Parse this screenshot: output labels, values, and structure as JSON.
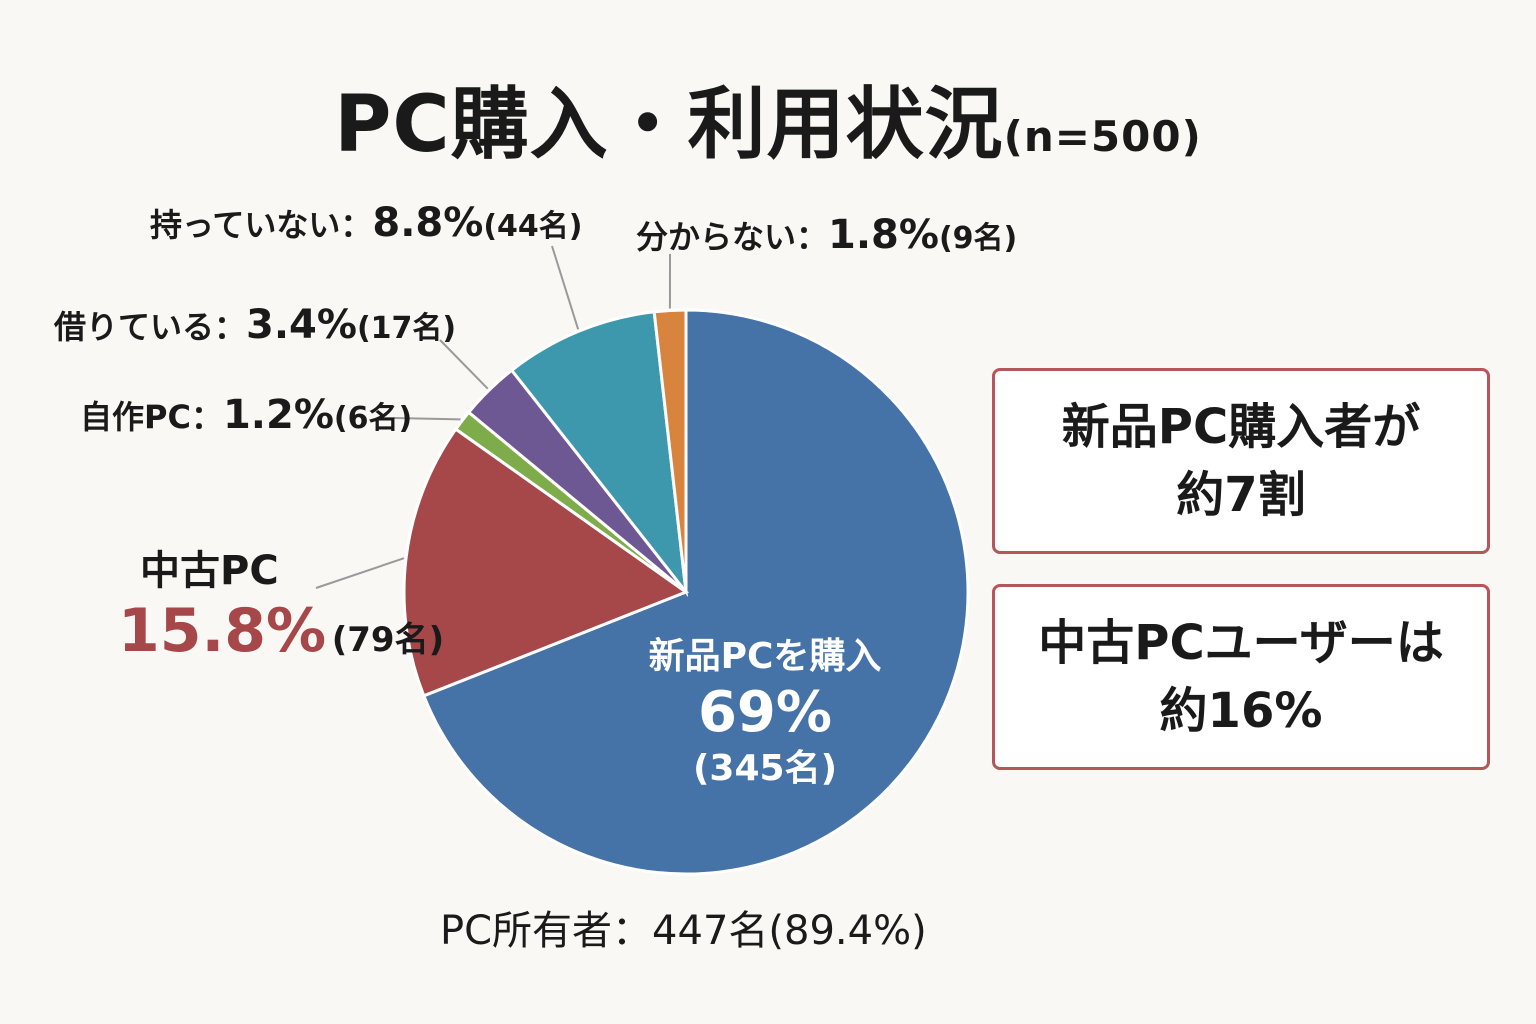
{
  "title": {
    "main": "PC購入・利用状況",
    "sub": "(n=500)"
  },
  "chart_data": {
    "type": "pie",
    "title": "PC購入・利用状況(n=500)",
    "categories": [
      "新品PCを購入",
      "中古PC",
      "自作PC",
      "借りている",
      "持っていない",
      "分からない"
    ],
    "values": [
      69,
      15.8,
      1.2,
      3.4,
      8.8,
      1.8
    ],
    "counts": [
      345,
      79,
      6,
      17,
      44,
      9
    ],
    "colors": [
      "#4572a7",
      "#a6474a",
      "#7eac4a",
      "#6e5893",
      "#3e98ad",
      "#d8843e"
    ]
  },
  "labels": {
    "new_pc": {
      "name": "新品PCを購入",
      "pct": "69%",
      "count": "(345名)"
    },
    "used_pc": {
      "name": "中古PC",
      "pct": "15.8%",
      "count": "(79名)"
    },
    "self_built": {
      "name": "自作PC：",
      "pct": "1.2%",
      "count": "(6名)"
    },
    "borrowed": {
      "name": "借りている：",
      "pct": "3.4%",
      "count": "(17名)"
    },
    "none": {
      "name": "持っていない：",
      "pct": "8.8%",
      "count": "(44名)"
    },
    "unknown": {
      "name": "分からない：",
      "pct": "1.8%",
      "count": "(9名)"
    }
  },
  "owners": "PC所有者：447名(89.4%)",
  "callouts": [
    {
      "line1": "新品PC購入者が",
      "line2": "約7割"
    },
    {
      "line1": "中古PCユーザーは",
      "line2": "約16%"
    }
  ]
}
